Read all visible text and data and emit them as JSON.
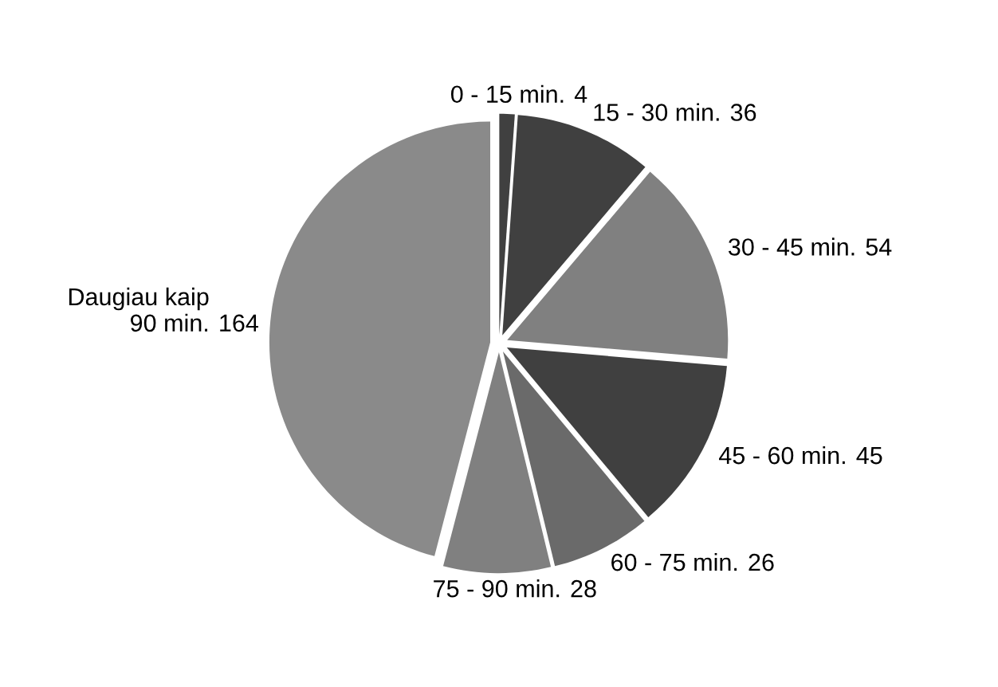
{
  "chart_data": {
    "type": "pie",
    "categories": [
      "0 - 15 min.",
      "15 - 30 min.",
      "30 - 45 min.",
      "45 - 60 min.",
      "60 - 75 min.",
      "75 - 90 min.",
      "Daugiau kaip\n90 min."
    ],
    "values": [
      4,
      36,
      54,
      45,
      26,
      28,
      164
    ],
    "colors": [
      "#404040",
      "#404040",
      "#808080",
      "#404040",
      "#6a6a6a",
      "#808080",
      "#8a8a8a"
    ],
    "data_labels": true
  }
}
